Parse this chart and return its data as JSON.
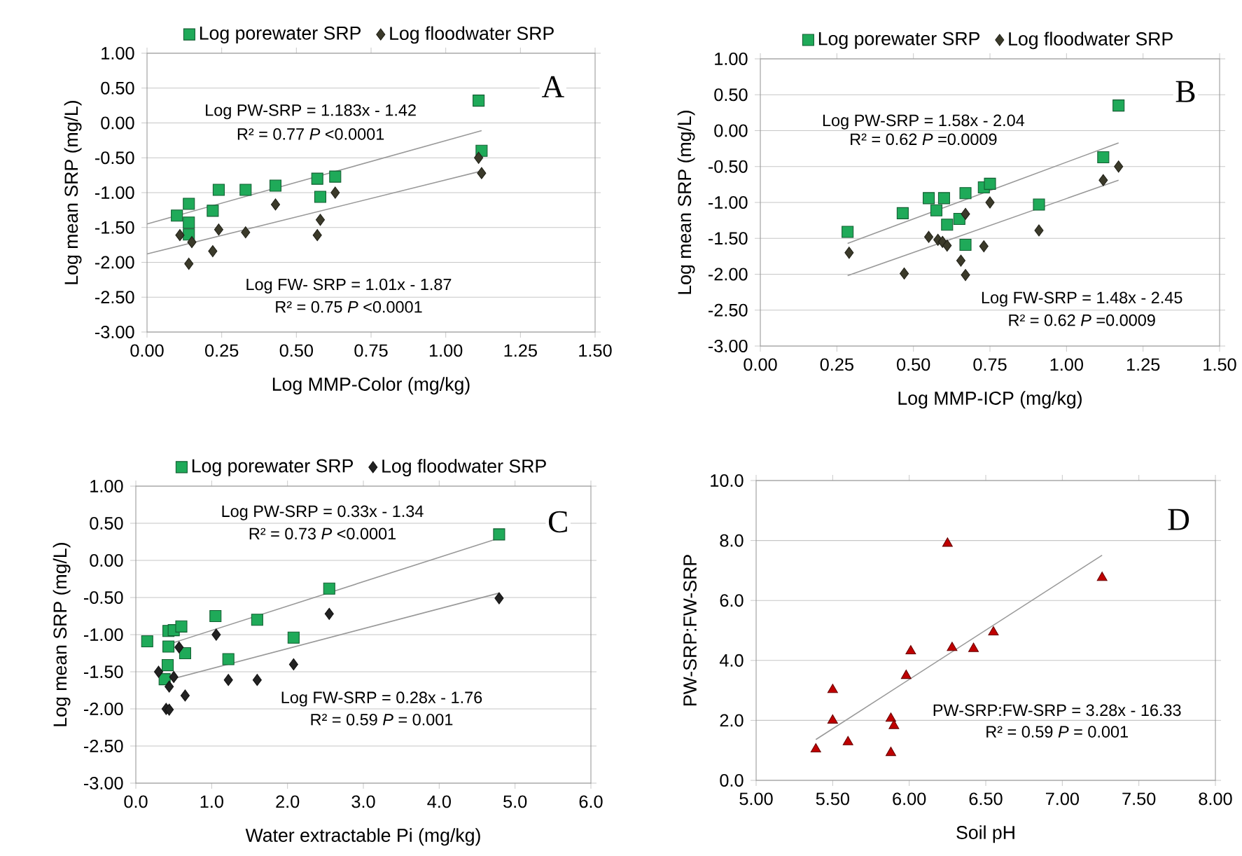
{
  "chart_data": [
    {
      "type": "scatter",
      "xlabel": "Log MMP-Color (mg/kg)",
      "ylabel": "Log mean SRP (mg/L)",
      "grid": "y",
      "legend": "top",
      "xlim": [
        0,
        1.5
      ],
      "ylim": [
        -3,
        1
      ],
      "xticks": [
        {
          "value": 0,
          "label": "0.00"
        },
        {
          "value": 0.25,
          "label": "0.25"
        },
        {
          "value": 0.5,
          "label": "0.50"
        },
        {
          "value": 0.75,
          "label": "0.75"
        },
        {
          "value": 1,
          "label": "1.00"
        },
        {
          "value": 1.25,
          "label": "1.25"
        },
        {
          "value": 1.5,
          "label": "1.50"
        }
      ],
      "yticks": [
        {
          "value": 1,
          "label": "1.00"
        },
        {
          "value": 0.5,
          "label": "0.50"
        },
        {
          "value": 0,
          "label": "0.00"
        },
        {
          "value": -0.5,
          "label": "-0.50"
        },
        {
          "value": -1,
          "label": "-1.00"
        },
        {
          "value": -1.5,
          "label": "-1.50"
        },
        {
          "value": -2,
          "label": "-2.00"
        },
        {
          "value": -2.5,
          "label": "-2.50"
        },
        {
          "value": -3,
          "label": "-3.00"
        }
      ],
      "annotations": [
        "A",
        "Log PW-SRP = 1.183x - 1.42",
        "R² = 0.77 *P* <0.0001",
        "Log FW- SRP = 1.01x - 1.87",
        "R² = 0.75 *P* <0.0001"
      ],
      "series": [
        {
          "name": "Log porewater SRP",
          "marker": "square",
          "color": "#1faa59",
          "x": [
            0.1,
            0.14,
            0.14,
            0.14,
            0.22,
            0.24,
            0.33,
            0.43,
            0.57,
            0.58,
            0.63,
            1.11,
            1.12
          ],
          "values": [
            -1.33,
            -1.16,
            -1.43,
            -1.6,
            -1.26,
            -0.96,
            -0.96,
            -0.9,
            -0.8,
            -1.06,
            -0.77,
            0.32,
            -0.4
          ]
        },
        {
          "name": "Log floodwater SRP",
          "marker": "diamond",
          "color": "#3b3a2a",
          "x": [
            0.11,
            0.15,
            0.14,
            0.22,
            0.24,
            0.33,
            0.43,
            0.57,
            0.58,
            0.63,
            1.11,
            1.12
          ],
          "values": [
            -1.61,
            -1.71,
            -2.02,
            -1.84,
            -1.53,
            -1.57,
            -1.17,
            -1.61,
            -1.39,
            -1.0,
            -0.5,
            -0.72
          ]
        },
        {
          "type": "line",
          "marker": "none",
          "color": "#999999",
          "x": [
            0,
            1.12
          ],
          "values": [
            -1.45,
            -0.11
          ]
        },
        {
          "type": "line",
          "marker": "none",
          "color": "#999999",
          "x": [
            0,
            1.12
          ],
          "values": [
            -1.88,
            -0.69
          ]
        }
      ]
    },
    {
      "type": "scatter",
      "xlabel": "Log MMP-ICP (mg/kg)",
      "ylabel": "Log mean SRP (mg/L)",
      "grid": "y",
      "legend": "top",
      "xlim": [
        0,
        1.5
      ],
      "ylim": [
        -3,
        1
      ],
      "xticks": [
        {
          "value": 0,
          "label": "0.00"
        },
        {
          "value": 0.25,
          "label": "0.25"
        },
        {
          "value": 0.5,
          "label": "0.50"
        },
        {
          "value": 0.75,
          "label": "0.75"
        },
        {
          "value": 1,
          "label": "1.00"
        },
        {
          "value": 1.25,
          "label": "1.25"
        },
        {
          "value": 1.5,
          "label": "1.50"
        }
      ],
      "yticks": [
        {
          "value": 1,
          "label": "1.00"
        },
        {
          "value": 0.5,
          "label": "0.50"
        },
        {
          "value": 0,
          "label": "0.00"
        },
        {
          "value": -0.5,
          "label": "-0.50"
        },
        {
          "value": -1,
          "label": "-1.00"
        },
        {
          "value": -1.5,
          "label": "-1.50"
        },
        {
          "value": -2,
          "label": "-2.00"
        },
        {
          "value": -2.5,
          "label": "-2.50"
        },
        {
          "value": -3,
          "label": "-3.00"
        }
      ],
      "annotations": [
        "B",
        "Log PW-SRP = 1.58x - 2.04",
        "R² = 0.62 *P* =0.0009",
        "Log FW-SRP = 1.48x - 2.45",
        "R² = 0.62 *P* =0.0009"
      ],
      "series": [
        {
          "name": "Log porewater SRP",
          "marker": "square",
          "color": "#1faa59",
          "x": [
            0.285,
            0.465,
            0.55,
            0.6,
            0.575,
            0.61,
            0.65,
            0.67,
            0.67,
            0.73,
            0.75,
            0.91,
            1.12,
            1.17
          ],
          "values": [
            -1.41,
            -1.15,
            -0.94,
            -0.94,
            -1.11,
            -1.31,
            -1.23,
            -0.87,
            -1.59,
            -0.79,
            -0.74,
            -1.03,
            -0.37,
            0.35
          ]
        },
        {
          "name": "Log floodwater SRP",
          "marker": "diamond",
          "color": "#3b3a2a",
          "x": [
            0.29,
            0.47,
            0.55,
            0.58,
            0.595,
            0.61,
            0.655,
            0.67,
            0.67,
            0.73,
            0.75,
            0.91,
            1.12,
            1.17
          ],
          "values": [
            -1.7,
            -1.99,
            -1.48,
            -1.52,
            -1.55,
            -1.6,
            -1.81,
            -1.16,
            -2.01,
            -1.61,
            -1.0,
            -1.39,
            -0.69,
            -0.5
          ]
        },
        {
          "type": "line",
          "marker": "none",
          "color": "#999999",
          "x": [
            0.285,
            1.17
          ],
          "values": [
            -1.57,
            -0.17
          ]
        },
        {
          "type": "line",
          "marker": "none",
          "color": "#999999",
          "x": [
            0.285,
            1.17
          ],
          "values": [
            -2.02,
            -0.69
          ]
        }
      ]
    },
    {
      "type": "scatter",
      "xlabel": "Water extractable  Pi (mg/kg)",
      "ylabel": "Log mean SRP (mg/L)",
      "grid": "y",
      "legend": "top",
      "xlim": [
        0,
        6
      ],
      "ylim": [
        -3,
        1
      ],
      "xticks": [
        {
          "value": 0,
          "label": "0.0"
        },
        {
          "value": 1,
          "label": "1.0"
        },
        {
          "value": 2,
          "label": "2.0"
        },
        {
          "value": 3,
          "label": "3.0"
        },
        {
          "value": 4,
          "label": "4.0"
        },
        {
          "value": 5,
          "label": "5.0"
        },
        {
          "value": 6,
          "label": "6.0"
        }
      ],
      "yticks": [
        {
          "value": 1,
          "label": "1.00"
        },
        {
          "value": 0.5,
          "label": "0.50"
        },
        {
          "value": 0,
          "label": "0.00"
        },
        {
          "value": -0.5,
          "label": "-0.50"
        },
        {
          "value": -1,
          "label": "-1.00"
        },
        {
          "value": -1.5,
          "label": "-1.50"
        },
        {
          "value": -2,
          "label": "-2.00"
        },
        {
          "value": -2.5,
          "label": "-2.50"
        },
        {
          "value": -3,
          "label": "-3.00"
        }
      ],
      "annotations": [
        "C",
        "Log PW-SRP = 0.33x - 1.34",
        "R² = 0.73 *P* <0.0001",
        "Log FW-SRP = 0.28x - 1.76",
        "R² = 0.59 *P* = 0.001"
      ],
      "series": [
        {
          "name": "Log porewater SRP",
          "marker": "square",
          "color": "#1faa59",
          "x": [
            0.15,
            0.43,
            0.43,
            0.5,
            0.6,
            0.65,
            0.42,
            0.38,
            1.05,
            1.22,
            1.6,
            2.08,
            2.55,
            4.79
          ],
          "values": [
            -1.09,
            -0.95,
            -1.16,
            -0.94,
            -0.89,
            -1.25,
            -1.41,
            -1.6,
            -0.75,
            -1.33,
            -0.8,
            -1.04,
            -0.38,
            0.35
          ]
        },
        {
          "name": "Log floodwater SRP",
          "marker": "diamond",
          "color": "#222222",
          "x": [
            0.3,
            0.5,
            0.44,
            0.4,
            0.44,
            0.57,
            0.65,
            1.06,
            1.22,
            1.6,
            2.08,
            2.55,
            4.79
          ],
          "values": [
            -1.5,
            -1.57,
            -1.7,
            -2.0,
            -2.01,
            -1.17,
            -1.82,
            -1.0,
            -1.61,
            -1.61,
            -1.4,
            -0.72,
            -0.51
          ]
        },
        {
          "type": "line",
          "marker": "none",
          "color": "#999999",
          "x": [
            0.43,
            4.79
          ],
          "values": [
            -1.13,
            0.3
          ]
        },
        {
          "type": "line",
          "marker": "none",
          "color": "#999999",
          "x": [
            0.43,
            4.79
          ],
          "values": [
            -1.61,
            -0.44
          ]
        }
      ]
    },
    {
      "type": "scatter",
      "xlabel": "Soil pH",
      "ylabel": "PW-SRP:FW-SRP",
      "grid": "y",
      "xlim": [
        5,
        8
      ],
      "ylim": [
        0,
        10
      ],
      "xticks": [
        {
          "value": 5,
          "label": "5.00"
        },
        {
          "value": 5.5,
          "label": "5.50"
        },
        {
          "value": 6,
          "label": "6.00"
        },
        {
          "value": 6.5,
          "label": "6.50"
        },
        {
          "value": 7,
          "label": "7.00"
        },
        {
          "value": 7.5,
          "label": "7.50"
        },
        {
          "value": 8,
          "label": "8.00"
        }
      ],
      "yticks": [
        {
          "value": 0,
          "label": "0.0"
        },
        {
          "value": 2,
          "label": "2.0"
        },
        {
          "value": 4,
          "label": "4.0"
        },
        {
          "value": 6,
          "label": "6.0"
        },
        {
          "value": 8,
          "label": "8.0"
        },
        {
          "value": 10,
          "label": "10.0"
        }
      ],
      "annotations": [
        "D",
        "PW-SRP:FW-SRP = 3.28x - 16.33",
        "R² = 0.59 *P* = 0.001"
      ],
      "series": [
        {
          "marker": "triangle",
          "color": "#c00000",
          "x": [
            5.39,
            5.5,
            5.5,
            5.6,
            5.88,
            5.9,
            5.88,
            5.98,
            6.01,
            6.25,
            6.28,
            6.42,
            6.55,
            7.26
          ],
          "values": [
            1.04,
            3.02,
            2.0,
            1.28,
            2.06,
            1.82,
            0.92,
            3.49,
            4.31,
            7.9,
            4.42,
            4.39,
            4.94,
            6.76
          ]
        },
        {
          "type": "line",
          "marker": "none",
          "color": "#999999",
          "x": [
            5.39,
            7.26
          ],
          "values": [
            1.36,
            7.51
          ]
        }
      ]
    }
  ]
}
